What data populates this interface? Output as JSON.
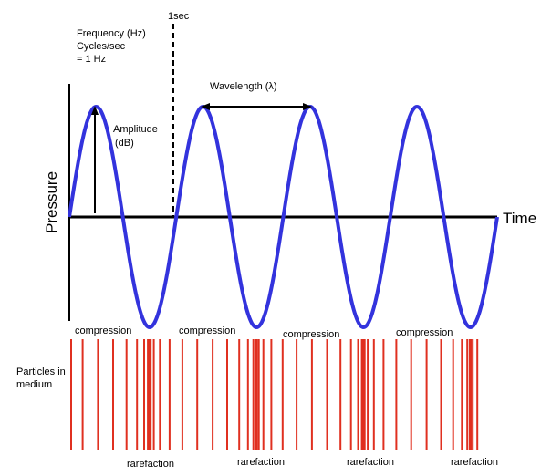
{
  "labels": {
    "freq_line1": "Frequency (Hz)",
    "freq_line2": "Cycles/sec",
    "freq_line3": "= 1 Hz",
    "one_sec": "1sec",
    "wavelength": "Wavelength (λ)",
    "amplitude_line1": "Amplitude",
    "amplitude_line2": "(dB)",
    "y_axis": "Pressure",
    "x_axis": "Time",
    "particles_line1": "Particles in",
    "particles_line2": "medium",
    "compression": [
      "compression",
      "compression",
      "compression",
      "compression"
    ],
    "rarefaction": [
      "rarefaction",
      "rarefaction",
      "rarefaction",
      "rarefaction"
    ]
  },
  "colors": {
    "wave": "#3333dd",
    "particles": "#e03020",
    "axis": "#000000"
  },
  "wave": {
    "cycles": 4,
    "starts_at": "rest",
    "first_motion": "positive"
  }
}
